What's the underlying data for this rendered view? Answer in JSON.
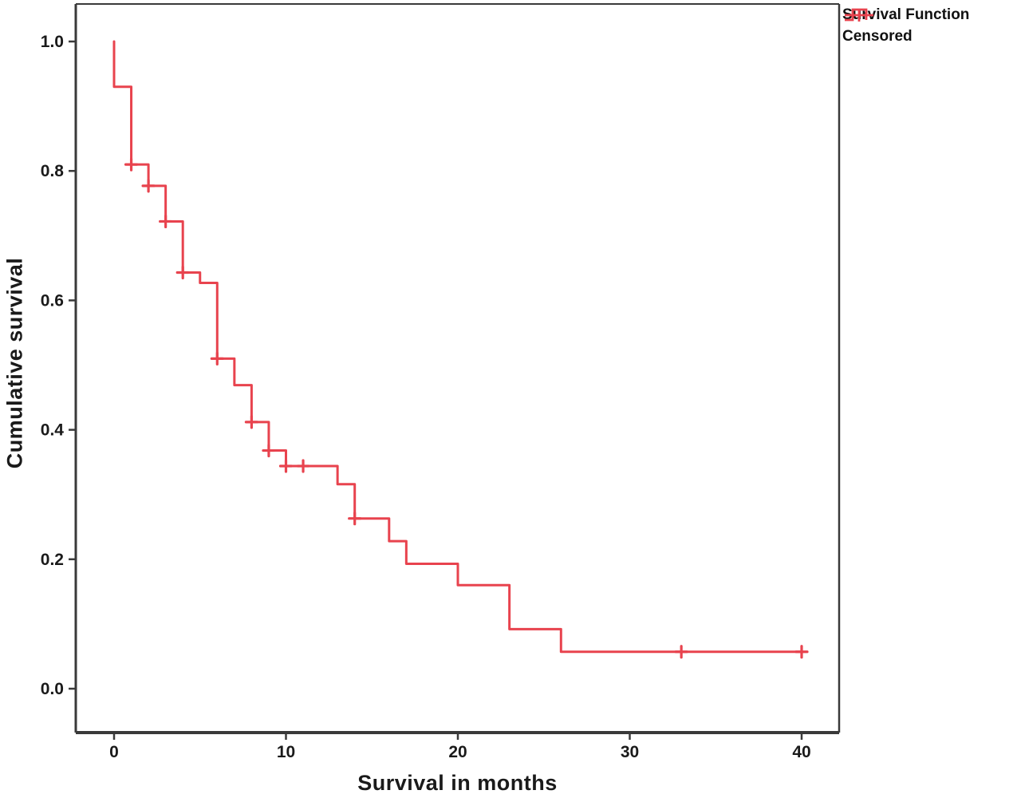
{
  "figure": {
    "xlabel": "Survival in months",
    "ylabel": "Cumulative survival"
  },
  "legend": {
    "entries": [
      {
        "label": "Survival Function",
        "marker": "step-line"
      },
      {
        "label": "Censored",
        "marker": "plus"
      }
    ]
  },
  "chart_data": {
    "type": "line",
    "subtype": "kaplan-meier-step",
    "title": "",
    "xlabel": "Survival in months",
    "ylabel": "Cumulative survival",
    "xlim": [
      -2.2,
      42.2
    ],
    "ylim": [
      -0.068,
      1.058
    ],
    "xticks": [
      0,
      10,
      20,
      30,
      40
    ],
    "yticks": [
      {
        "value": 0.0,
        "label": "0.0"
      },
      {
        "value": 0.2,
        "label": "0.2"
      },
      {
        "value": 0.4,
        "label": "0.4"
      },
      {
        "value": 0.6,
        "label": "0.6"
      },
      {
        "value": 0.8,
        "label": "0.8"
      },
      {
        "value": 1.0,
        "label": "1.0"
      }
    ],
    "grid": false,
    "legend_position": "outside-top-right",
    "series": [
      {
        "name": "Survival Function",
        "type": "step-post",
        "start": [
          0,
          1.0
        ],
        "drops": [
          [
            0,
            0.93
          ],
          [
            1,
            0.81
          ],
          [
            2,
            0.777
          ],
          [
            3,
            0.722
          ],
          [
            4,
            0.643
          ],
          [
            5,
            0.627
          ],
          [
            6,
            0.51
          ],
          [
            7,
            0.469
          ],
          [
            8,
            0.412
          ],
          [
            9,
            0.368
          ],
          [
            10,
            0.344
          ],
          [
            13,
            0.316
          ],
          [
            14,
            0.263
          ],
          [
            16,
            0.228
          ],
          [
            17,
            0.193
          ],
          [
            20,
            0.16
          ],
          [
            23,
            0.092
          ],
          [
            26,
            0.057
          ]
        ],
        "end_time": 40
      },
      {
        "name": "Censored",
        "type": "scatter-plus",
        "points": [
          [
            1,
            0.81
          ],
          [
            2,
            0.777
          ],
          [
            3,
            0.722
          ],
          [
            4,
            0.643
          ],
          [
            6,
            0.51
          ],
          [
            8,
            0.412
          ],
          [
            9,
            0.368
          ],
          [
            10,
            0.344
          ],
          [
            11,
            0.344
          ],
          [
            14,
            0.263
          ],
          [
            33,
            0.057
          ],
          [
            40,
            0.057
          ]
        ]
      }
    ],
    "colors": {
      "series": "#e8434e",
      "frame": "#3a3a3a",
      "text": "#1a1a1a"
    }
  }
}
